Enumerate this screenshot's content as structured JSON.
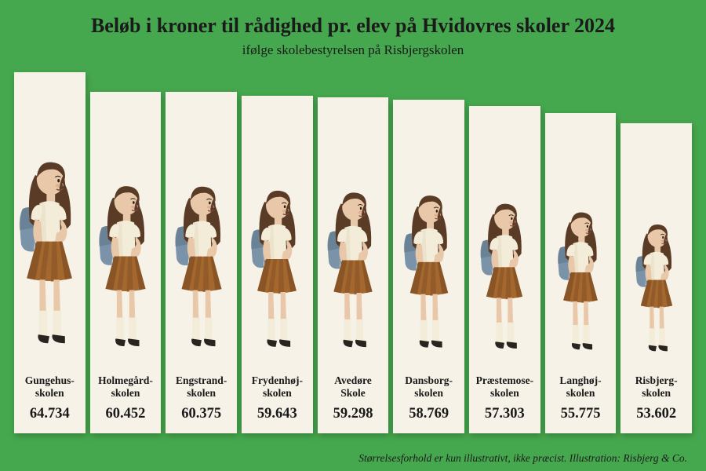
{
  "header": {
    "title": "Beløb i kroner til rådighed pr. elev på Hvidovres skoler 2024",
    "subtitle": "ifølge skolebestyrelsen på Risbjergskolen"
  },
  "footnote": "Størrelsesforhold er kun illustrativt, ikke præcist. Illustration: Risbjerg & Co.",
  "chart": {
    "type": "pictogram-bar",
    "background_color": "#46a84e",
    "column_bg": "#f6f2e8",
    "title_fontsize": 26,
    "subtitle_fontsize": 17,
    "label_fontsize": 13.5,
    "value_fontsize": 18.5,
    "max_col_height": 460,
    "min_col_height": 395,
    "figure_scale_max": 1.0,
    "figure_scale_min": 0.7,
    "items": [
      {
        "label": "Gungehus-\nskolen",
        "value": "64.734",
        "num": 64734
      },
      {
        "label": "Holmegård-\nskolen",
        "value": "60.452",
        "num": 60452
      },
      {
        "label": "Engstrand-\nskolen",
        "value": "60.375",
        "num": 60375
      },
      {
        "label": "Frydenhøj-\nskolen",
        "value": "59.643",
        "num": 59643
      },
      {
        "label": "Avedøre\nSkole",
        "value": "59.298",
        "num": 59298
      },
      {
        "label": "Dansborg-\nskolen",
        "value": "58.769",
        "num": 58769
      },
      {
        "label": "Præstemose-\nskolen",
        "value": "57.303",
        "num": 57303
      },
      {
        "label": "Langhøj-\nskolen",
        "value": "55.775",
        "num": 55775
      },
      {
        "label": "Risbjerg-\nskolen",
        "value": "53.602",
        "num": 53602
      }
    ],
    "figure_colors": {
      "skin": "#e8c8a8",
      "hair": "#5a3b26",
      "shirt": "#f3ecd9",
      "shirt_shade": "#e3d9bf",
      "skirt": "#a4682f",
      "skirt_shade": "#8a5526",
      "socks": "#f3ecd9",
      "shoes": "#2a2420",
      "backpack": "#7a93a8",
      "backpack_shade": "#5f7688",
      "cheek": "#d89a7a",
      "outline": "#3a2a1a"
    }
  }
}
